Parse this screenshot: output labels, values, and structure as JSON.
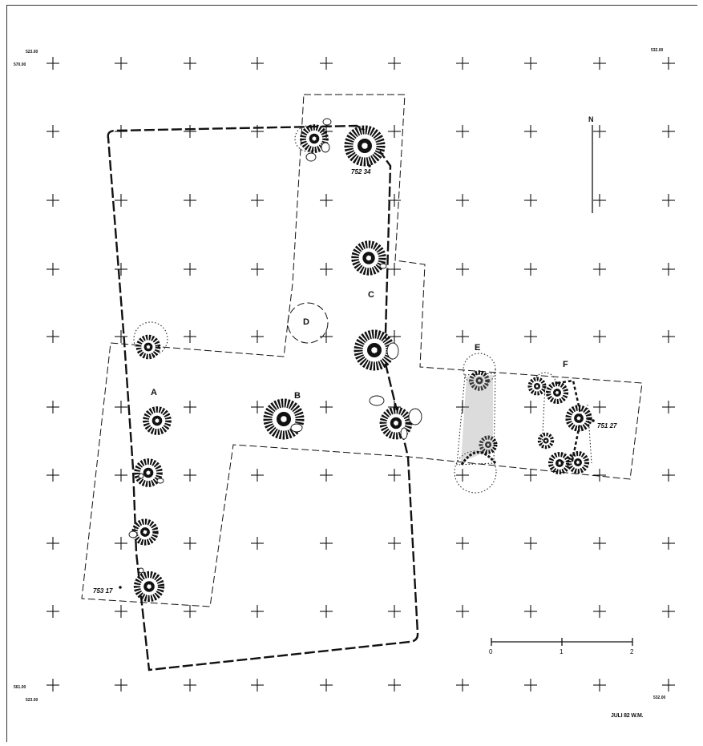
{
  "corner_labels": {
    "top_left_x": "523.00",
    "top_left_y": "570.00",
    "top_right": "532.00",
    "bottom_left_y": "561.00",
    "bottom_left_x": "523.00",
    "bottom_right": "532.00"
  },
  "north_arrow": {
    "label": "N"
  },
  "features": [
    {
      "id": "A",
      "label": "A"
    },
    {
      "id": "B",
      "label": "B"
    },
    {
      "id": "C",
      "label": "C"
    },
    {
      "id": "D",
      "label": "D"
    },
    {
      "id": "E",
      "label": "E"
    },
    {
      "id": "F",
      "label": "F"
    }
  ],
  "elevations": [
    {
      "id": "top",
      "label": "752 34"
    },
    {
      "id": "right",
      "label": "751 27"
    },
    {
      "id": "left",
      "label": "753 17"
    }
  ],
  "scale_bar": {
    "ticks": [
      "0",
      "1",
      "2"
    ]
  },
  "credit": "JULI 82  W.M."
}
